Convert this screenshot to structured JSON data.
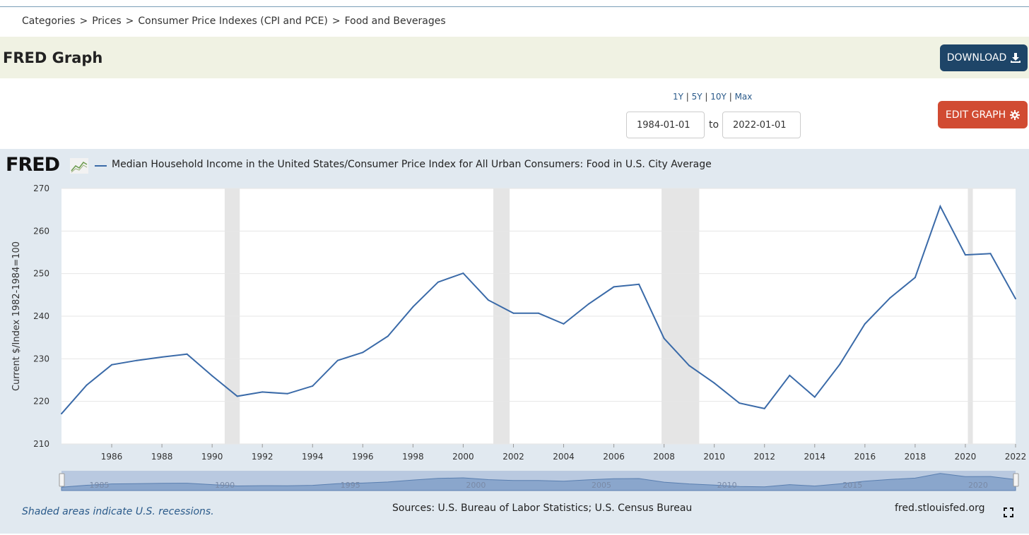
{
  "breadcrumb": {
    "items": [
      "Categories",
      "Prices",
      "Consumer Price Indexes (CPI and PCE)",
      "Food and Beverages"
    ],
    "separator": ">"
  },
  "header": {
    "title": "FRED Graph",
    "download_label": "DOWNLOAD"
  },
  "controls": {
    "ranges": [
      "1Y",
      "5Y",
      "10Y",
      "Max"
    ],
    "start_date": "1984-01-01",
    "to_label": "to",
    "end_date": "2022-01-01",
    "edit_label": "EDIT GRAPH"
  },
  "logo": {
    "text": "FRED"
  },
  "footer": {
    "recession_note": "Shaded areas indicate U.S. recessions.",
    "sources": "Sources: U.S. Bureau of Labor Statistics; U.S. Census Bureau",
    "site": "fred.stlouisfed.org"
  },
  "colors": {
    "series": "#3a6aa8",
    "recession": "#e5e5e5",
    "panel": "#e1e9f0",
    "download": "#1e4568",
    "edit": "#d14b32"
  },
  "chart_data": {
    "type": "line",
    "title": "",
    "legend": "Median Household Income in the United States/Consumer Price Index for All Urban Consumers: Food in U.S. City Average",
    "xlabel": "",
    "ylabel": "Current $/Index 1982-1984=100",
    "xlim": [
      1984,
      2022
    ],
    "ylim": [
      210,
      270
    ],
    "x_ticks": [
      1986,
      1988,
      1990,
      1992,
      1994,
      1996,
      1998,
      2000,
      2002,
      2004,
      2006,
      2008,
      2010,
      2012,
      2014,
      2016,
      2018,
      2020,
      2022
    ],
    "y_ticks": [
      210,
      220,
      230,
      240,
      250,
      260,
      270
    ],
    "grid": true,
    "recessions": [
      [
        1990.5,
        1991.1
      ],
      [
        2001.2,
        2001.85
      ],
      [
        2007.9,
        2009.4
      ],
      [
        2020.1,
        2020.3
      ]
    ],
    "navigator_labels": [
      1985,
      1990,
      1995,
      2000,
      2005,
      2010,
      2015,
      2020
    ],
    "series": [
      {
        "name": "Median Household Income in the United States/Consumer Price Index for All Urban Consumers: Food in U.S. City Average",
        "x": [
          1984,
          1985,
          1986,
          1987,
          1988,
          1989,
          1990,
          1991,
          1992,
          1993,
          1994,
          1995,
          1996,
          1997,
          1998,
          1999,
          2000,
          2001,
          2002,
          2003,
          2004,
          2005,
          2006,
          2007,
          2008,
          2009,
          2010,
          2011,
          2012,
          2013,
          2014,
          2015,
          2016,
          2017,
          2018,
          2019,
          2020,
          2021,
          2022
        ],
        "values": [
          217.1,
          223.8,
          228.6,
          229.6,
          230.4,
          231.1,
          226.0,
          221.2,
          222.2,
          221.8,
          223.6,
          229.6,
          231.5,
          235.3,
          242.2,
          248.0,
          250.1,
          243.8,
          240.7,
          240.7,
          238.2,
          242.9,
          246.9,
          247.5,
          234.8,
          228.4,
          224.3,
          219.6,
          218.3,
          226.1,
          221.0,
          228.7,
          238.2,
          244.3,
          249.1,
          265.8,
          254.4,
          254.7,
          244.1
        ]
      }
    ]
  }
}
